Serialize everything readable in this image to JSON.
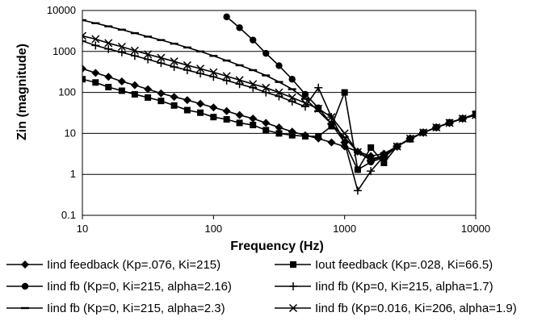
{
  "chart_data": {
    "type": "line",
    "xlabel": "Frequency (Hz)",
    "ylabel": "Zin (magnitude)",
    "xscale": "log",
    "yscale": "log",
    "xlim": [
      10,
      10000
    ],
    "ylim": [
      0.1,
      10000
    ],
    "grid": "horizontal",
    "legend_position": "bottom",
    "xticks": [
      "10",
      "100",
      "1000",
      "10000"
    ],
    "yticks": [
      "0.1",
      "1",
      "10",
      "100",
      "1000",
      "10000"
    ],
    "series": [
      {
        "name": "Iind feedback (Kp=.076, Ki=215)",
        "marker": "diamond",
        "points": [
          [
            10,
            380
          ],
          [
            12.6,
            300
          ],
          [
            15.8,
            240
          ],
          [
            20,
            185
          ],
          [
            25.1,
            150
          ],
          [
            31.6,
            120
          ],
          [
            39.8,
            95
          ],
          [
            50.1,
            78
          ],
          [
            63.1,
            65
          ],
          [
            79.4,
            53
          ],
          [
            100,
            43
          ],
          [
            126,
            35
          ],
          [
            158,
            28
          ],
          [
            200,
            23
          ],
          [
            251,
            18
          ],
          [
            316,
            14
          ],
          [
            398,
            11
          ],
          [
            501,
            9
          ],
          [
            631,
            7.5
          ],
          [
            794,
            6
          ],
          [
            1000,
            4.8
          ],
          [
            1259,
            3.6
          ],
          [
            1585,
            2.8
          ],
          [
            1995,
            3.2
          ],
          [
            2512,
            4.8
          ],
          [
            3162,
            7.5
          ],
          [
            3981,
            10.5
          ],
          [
            5012,
            14
          ],
          [
            6310,
            18
          ],
          [
            7943,
            23
          ],
          [
            10000,
            28
          ]
        ]
      },
      {
        "name": "Iout feedback (Kp=.028, Ki=66.5)",
        "marker": "square",
        "points": [
          [
            10,
            210
          ],
          [
            12.6,
            175
          ],
          [
            15.8,
            135
          ],
          [
            20,
            110
          ],
          [
            25.1,
            90
          ],
          [
            31.6,
            75
          ],
          [
            39.8,
            62
          ],
          [
            50.1,
            48
          ],
          [
            63.1,
            37
          ],
          [
            79.4,
            32
          ],
          [
            100,
            25
          ],
          [
            126,
            22
          ],
          [
            158,
            18
          ],
          [
            200,
            16
          ],
          [
            251,
            12
          ],
          [
            316,
            10
          ],
          [
            398,
            9
          ],
          [
            501,
            8.5
          ],
          [
            631,
            8.5
          ],
          [
            794,
            15
          ],
          [
            1000,
            100
          ],
          [
            1259,
            1.3
          ],
          [
            1585,
            4.5
          ],
          [
            1995,
            1.9
          ],
          [
            2512,
            4.8
          ],
          [
            3162,
            7.2
          ],
          [
            3981,
            10.5
          ],
          [
            5012,
            14
          ],
          [
            6310,
            18.5
          ],
          [
            7943,
            23
          ],
          [
            10000,
            30
          ]
        ]
      },
      {
        "name": "Iind fb (Kp=0, Ki=215, alpha=2.16)",
        "marker": "circle",
        "points": [
          [
            126,
            7000
          ],
          [
            158,
            3800
          ],
          [
            200,
            1900
          ],
          [
            251,
            900
          ],
          [
            316,
            450
          ],
          [
            398,
            210
          ],
          [
            501,
            90
          ],
          [
            631,
            42
          ],
          [
            794,
            17
          ],
          [
            1000,
            6
          ],
          [
            1259,
            1.3
          ],
          [
            1585,
            2
          ],
          [
            1995,
            2.6
          ],
          [
            2512,
            4.8
          ],
          [
            3162,
            7.5
          ],
          [
            3981,
            10.5
          ],
          [
            5012,
            14
          ],
          [
            6310,
            18
          ],
          [
            7943,
            23
          ],
          [
            10000,
            28
          ]
        ]
      },
      {
        "name": "Iind fb (Kp=0, Ki=215, alpha=1.7)",
        "marker": "plus",
        "points": [
          [
            10,
            1800
          ],
          [
            12.6,
            1400
          ],
          [
            15.8,
            1150
          ],
          [
            20,
            950
          ],
          [
            25.1,
            780
          ],
          [
            31.6,
            640
          ],
          [
            39.8,
            520
          ],
          [
            50.1,
            420
          ],
          [
            63.1,
            350
          ],
          [
            79.4,
            290
          ],
          [
            100,
            240
          ],
          [
            126,
            195
          ],
          [
            158,
            160
          ],
          [
            200,
            130
          ],
          [
            251,
            100
          ],
          [
            316,
            80
          ],
          [
            398,
            60
          ],
          [
            501,
            45
          ],
          [
            631,
            130
          ],
          [
            794,
            25
          ],
          [
            1000,
            6
          ],
          [
            1259,
            0.4
          ],
          [
            1585,
            1.2
          ],
          [
            1995,
            2.8
          ],
          [
            2512,
            4.8
          ],
          [
            3162,
            7.5
          ],
          [
            3981,
            10.5
          ],
          [
            5012,
            14
          ],
          [
            6310,
            18
          ],
          [
            7943,
            23
          ],
          [
            10000,
            28
          ]
        ]
      },
      {
        "name": "Iind fb (Kp=0, Ki=215, alpha=2.3)",
        "marker": "dash",
        "points": [
          [
            10,
            5800
          ],
          [
            12.6,
            4900
          ],
          [
            15.8,
            4100
          ],
          [
            20,
            3400
          ],
          [
            25.1,
            2800
          ],
          [
            31.6,
            2300
          ],
          [
            39.8,
            1900
          ],
          [
            50.1,
            1550
          ],
          [
            63.1,
            1250
          ],
          [
            79.4,
            1000
          ],
          [
            100,
            780
          ],
          [
            126,
            600
          ],
          [
            158,
            460
          ],
          [
            200,
            350
          ],
          [
            251,
            260
          ],
          [
            316,
            180
          ],
          [
            398,
            120
          ],
          [
            501,
            70
          ],
          [
            631,
            35
          ],
          [
            794,
            17
          ],
          [
            1000,
            8
          ],
          [
            1259,
            3.5
          ],
          [
            1585,
            2.2
          ],
          [
            1995,
            2.8
          ],
          [
            2512,
            4.8
          ],
          [
            3162,
            7.5
          ],
          [
            3981,
            10.5
          ],
          [
            5012,
            14
          ],
          [
            6310,
            18
          ],
          [
            7943,
            23
          ],
          [
            10000,
            28
          ]
        ]
      },
      {
        "name": "Iind fb (Kp=0.016, Ki=206, alpha=1.9)",
        "marker": "cross",
        "points": [
          [
            10,
            2400
          ],
          [
            12.6,
            2000
          ],
          [
            15.8,
            1600
          ],
          [
            20,
            1300
          ],
          [
            25.1,
            1050
          ],
          [
            31.6,
            850
          ],
          [
            39.8,
            700
          ],
          [
            50.1,
            570
          ],
          [
            63.1,
            460
          ],
          [
            79.4,
            380
          ],
          [
            100,
            310
          ],
          [
            126,
            250
          ],
          [
            158,
            200
          ],
          [
            200,
            160
          ],
          [
            251,
            130
          ],
          [
            316,
            100
          ],
          [
            398,
            75
          ],
          [
            501,
            55
          ],
          [
            631,
            40
          ],
          [
            794,
            25
          ],
          [
            1000,
            10
          ],
          [
            1259,
            3.5
          ],
          [
            1585,
            2.4
          ],
          [
            1995,
            2.8
          ],
          [
            2512,
            4.8
          ],
          [
            3162,
            7.5
          ],
          [
            3981,
            10.5
          ],
          [
            5012,
            14
          ],
          [
            6310,
            18
          ],
          [
            7943,
            23
          ],
          [
            10000,
            28
          ]
        ]
      }
    ]
  }
}
